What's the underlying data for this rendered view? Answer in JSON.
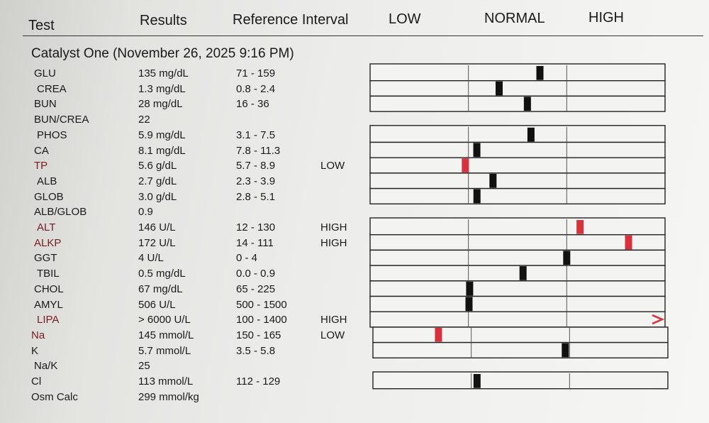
{
  "header": {
    "columns": [
      "Test",
      "Results",
      "Reference Interval",
      "LOW",
      "NORMAL",
      "HIGH"
    ]
  },
  "section": {
    "title": "Catalyst One (November 26, 2025 9:16 PM)",
    "rows": [
      {
        "test": "GLU",
        "result": "135 mg/dL",
        "reference": "71 - 159"
      },
      {
        "test": "CREA",
        "result": "1.3 mg/dL",
        "reference": "0.8 - 2.4"
      },
      {
        "test": "BUN",
        "result": "28 mg/dL",
        "reference": "16 - 36"
      },
      {
        "test": "BUN/CREA",
        "result": "22"
      },
      {
        "test": "PHOS",
        "result": "5.9 mg/dL",
        "reference": "3.1 - 7.5"
      },
      {
        "test": "CA",
        "result": "8.1 mg/dL",
        "reference": "7.8 - 11.3"
      },
      {
        "test": "TP",
        "result": "5.6 g/dL",
        "reference": "5.7 - 8.9",
        "flag": "LOW"
      },
      {
        "test": "ALB",
        "result": "2.7 g/dL",
        "reference": "2.3 - 3.9"
      },
      {
        "test": "GLOB",
        "result": "3.0 g/dL",
        "reference": "2.8 - 5.1"
      },
      {
        "test": "ALB/GLOB",
        "result": "0.9"
      },
      {
        "test": "ALT",
        "result": "146 U/L",
        "reference": "12 - 130",
        "flag": "HIGH"
      },
      {
        "test": "ALKP",
        "result": "172 U/L",
        "reference": "14 - 111",
        "flag": "HIGH"
      },
      {
        "test": "GGT",
        "result": "4 U/L",
        "reference": "0 - 4"
      },
      {
        "test": "TBIL",
        "result": "0.5 mg/dL",
        "reference": "0.0 - 0.9"
      },
      {
        "test": "CHOL",
        "result": "67 mg/dL",
        "reference": "65 - 225"
      },
      {
        "test": "AMYL",
        "result": "506 U/L",
        "reference": "500 - 1500"
      },
      {
        "test": "LIPA",
        "result": "> 6000 U/L",
        "reference": "100 - 1400",
        "flag": "HIGH"
      },
      {
        "test": "Na",
        "result": "145 mmol/L",
        "reference": "150 - 165",
        "flag": "LOW"
      },
      {
        "test": "K",
        "result": "5.7 mmol/L",
        "reference": "3.5 - 5.8"
      },
      {
        "test": "Na/K",
        "result": "25"
      },
      {
        "test": "Cl",
        "result": "113 mmol/L",
        "reference": "112 - 129"
      },
      {
        "test": "Osm Calc",
        "result": "299 mmol/kg"
      }
    ]
  }
}
